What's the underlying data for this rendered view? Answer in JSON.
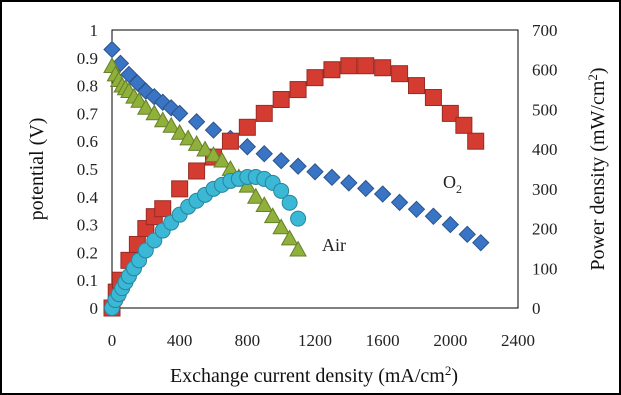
{
  "chart_data": {
    "type": "scatter",
    "xlabel_main": "Exchange current density  (mA/cm",
    "xlabel_sup": "2",
    "xlabel_close": ")",
    "ylabel_left": "potential  (V)",
    "ylabel_right_main": "Power density  (mW/cm",
    "ylabel_right_sup": "2",
    "ylabel_right_close": ")",
    "xlim": [
      0,
      2400
    ],
    "ylim_left": [
      0,
      1
    ],
    "ylim_right": [
      0,
      700
    ],
    "x_ticks": [
      "0",
      "400",
      "800",
      "1200",
      "1600",
      "2000",
      "2400"
    ],
    "y_left_ticks": [
      "0",
      "0.1",
      "0.2",
      "0.3",
      "0.4",
      "0.5",
      "0.6",
      "0.7",
      "0.8",
      "0.9",
      "1"
    ],
    "y_right_ticks": [
      "0",
      "100",
      "200",
      "300",
      "400",
      "500",
      "600",
      "700"
    ],
    "annotations": {
      "o2_main": "O",
      "o2_sub": "2",
      "air": "Air"
    },
    "grid": false,
    "legend": "none",
    "series": [
      {
        "axis": "left",
        "marker": "diamond",
        "color": "#3a74c4",
        "x": [
          0,
          50,
          100,
          150,
          200,
          250,
          300,
          350,
          400,
          500,
          600,
          700,
          800,
          900,
          1000,
          1100,
          1200,
          1300,
          1400,
          1500,
          1600,
          1700,
          1800,
          1900,
          2000,
          2100,
          2180
        ],
        "y": [
          0.93,
          0.88,
          0.84,
          0.81,
          0.78,
          0.76,
          0.74,
          0.72,
          0.7,
          0.67,
          0.64,
          0.61,
          0.58,
          0.555,
          0.53,
          0.51,
          0.49,
          0.47,
          0.45,
          0.43,
          0.41,
          0.38,
          0.355,
          0.33,
          0.3,
          0.265,
          0.235
        ]
      },
      {
        "axis": "right",
        "marker": "square",
        "color": "#d43c32",
        "x": [
          0,
          25,
          50,
          100,
          150,
          200,
          250,
          300,
          400,
          500,
          600,
          700,
          800,
          900,
          1000,
          1100,
          1200,
          1300,
          1400,
          1500,
          1600,
          1700,
          1800,
          1900,
          2000,
          2080,
          2150
        ],
        "y": [
          0,
          40,
          70,
          120,
          160,
          200,
          230,
          250,
          300,
          345,
          380,
          420,
          455,
          490,
          525,
          550,
          580,
          600,
          610,
          610,
          605,
          590,
          560,
          530,
          490,
          460,
          420
        ]
      },
      {
        "axis": "left",
        "marker": "triangle",
        "color": "#8fb03a",
        "x": [
          0,
          20,
          40,
          60,
          80,
          100,
          130,
          160,
          200,
          250,
          300,
          350,
          400,
          450,
          500,
          550,
          600,
          650,
          700,
          750,
          800,
          850,
          900,
          950,
          1000,
          1050,
          1100
        ],
        "y": [
          0.87,
          0.84,
          0.82,
          0.8,
          0.79,
          0.78,
          0.76,
          0.745,
          0.72,
          0.7,
          0.675,
          0.655,
          0.63,
          0.61,
          0.59,
          0.57,
          0.55,
          0.53,
          0.5,
          0.47,
          0.44,
          0.4,
          0.37,
          0.33,
          0.29,
          0.25,
          0.21
        ]
      },
      {
        "axis": "right",
        "marker": "circle",
        "color": "#3ab8d6",
        "x": [
          0,
          20,
          40,
          60,
          80,
          100,
          130,
          160,
          200,
          250,
          300,
          350,
          400,
          450,
          500,
          550,
          600,
          650,
          700,
          750,
          800,
          850,
          900,
          950,
          1000,
          1050,
          1100
        ],
        "y": [
          0,
          20,
          35,
          50,
          65,
          80,
          100,
          120,
          145,
          170,
          195,
          215,
          235,
          255,
          270,
          285,
          300,
          310,
          320,
          325,
          330,
          330,
          325,
          315,
          295,
          265,
          225
        ]
      }
    ]
  }
}
